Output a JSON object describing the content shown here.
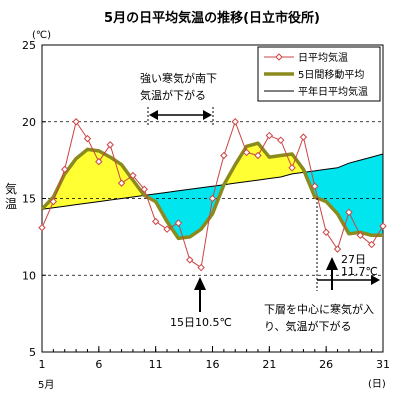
{
  "chart_data": {
    "type": "line",
    "title": "5月の日平均気温の推移(日立市役所)",
    "unit_label": "(℃)",
    "ylabel": "気温",
    "x_unit_label": "(日)",
    "month_label": "5月",
    "x_ticks": [
      "1",
      "6",
      "11",
      "16",
      "21",
      "26",
      "31"
    ],
    "y_ticks": [
      "5",
      "10",
      "15",
      "20",
      "25"
    ],
    "ylim": [
      5,
      25
    ],
    "xlim": [
      1,
      31
    ],
    "grid": "horizontal-dashed",
    "legend_position": "top-right",
    "x": [
      1,
      2,
      3,
      4,
      5,
      6,
      7,
      8,
      9,
      10,
      11,
      12,
      13,
      14,
      15,
      16,
      17,
      18,
      19,
      20,
      21,
      22,
      23,
      24,
      25,
      26,
      27,
      28,
      29,
      30,
      31
    ],
    "series": [
      {
        "name": "日平均気温",
        "color": "#cc4444",
        "marker": "diamond",
        "values": [
          13.1,
          14.8,
          16.9,
          20.0,
          18.9,
          17.4,
          18.5,
          16.0,
          16.5,
          15.6,
          13.5,
          13.0,
          13.4,
          11.0,
          10.5,
          15.0,
          17.8,
          20.0,
          18.0,
          17.8,
          19.1,
          18.8,
          17.0,
          19.0,
          15.8,
          12.8,
          11.7,
          14.1,
          12.6,
          12.0,
          13.2
        ]
      },
      {
        "name": "5日間移動平均",
        "color": "#8a8a1e",
        "values": [
          14.3,
          15.1,
          16.6,
          17.6,
          18.2,
          18.1,
          17.7,
          17.2,
          16.2,
          15.2,
          14.8,
          13.5,
          12.4,
          12.5,
          13.0,
          14.0,
          15.9,
          17.2,
          18.4,
          18.6,
          17.7,
          17.8,
          17.9,
          16.9,
          15.1,
          14.8,
          14.0,
          12.7,
          12.8,
          12.6,
          12.6
        ]
      },
      {
        "name": "平年日平均気温",
        "color": "#000000",
        "values": [
          14.3,
          14.4,
          14.5,
          14.6,
          14.7,
          14.8,
          14.9,
          15.0,
          15.1,
          15.2,
          15.3,
          15.4,
          15.5,
          15.6,
          15.7,
          15.8,
          15.9,
          16.0,
          16.1,
          16.2,
          16.3,
          16.4,
          16.6,
          16.7,
          16.8,
          16.9,
          17.0,
          17.3,
          17.5,
          17.7,
          17.9
        ]
      }
    ],
    "fill_colors": {
      "above": "#ffff33",
      "below": "#00e5ee"
    },
    "annotations": {
      "cold_line1": "強い寒気が南下",
      "cold_line2": "気温が下がる",
      "day15_label": "15日10.5℃",
      "day27_label1": "27日",
      "day27_label2": "11.7℃",
      "bottom_line1": "下層を中心に寒気が入",
      "bottom_line2": "り、気温が下がる"
    }
  }
}
